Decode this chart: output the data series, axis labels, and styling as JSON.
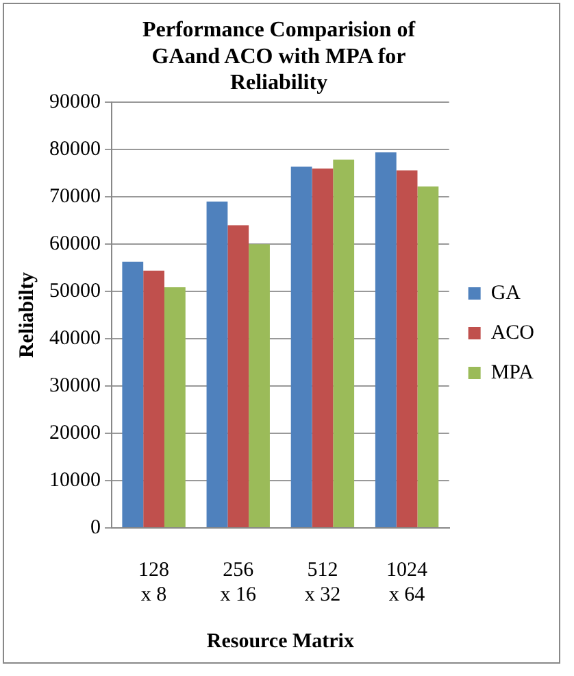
{
  "chart_data": {
    "type": "bar",
    "title": "Performance Comparision of GAand ACO with MPA for Reliability",
    "xlabel": "Resource Matrix",
    "ylabel": "Reliabilty",
    "categories": [
      "128\nx 8",
      "256\nx 16",
      "512\nx 32",
      "1024\nx 64"
    ],
    "series": [
      {
        "name": "GA",
        "color": "#4f81bd",
        "values": [
          56300,
          69000,
          76400,
          79400
        ]
      },
      {
        "name": "ACO",
        "color": "#c0504d",
        "values": [
          54400,
          64000,
          76000,
          75600
        ]
      },
      {
        "name": "MPA",
        "color": "#9bbb59",
        "values": [
          50900,
          60000,
          77900,
          72200
        ]
      }
    ],
    "ylim": [
      0,
      90000
    ],
    "yticks": [
      0,
      10000,
      20000,
      30000,
      40000,
      50000,
      60000,
      70000,
      80000,
      90000
    ],
    "grid": "y",
    "legend": "right"
  }
}
